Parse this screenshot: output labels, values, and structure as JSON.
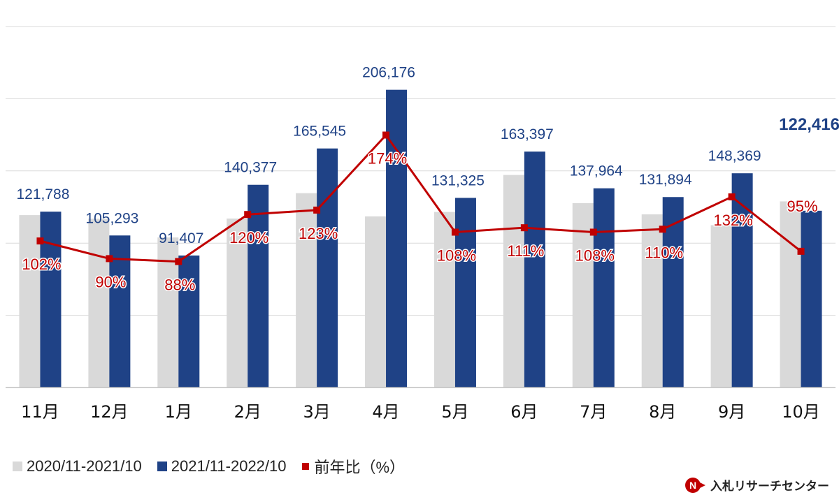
{
  "chart_data": {
    "type": "bar",
    "categories": [
      "11月",
      "12月",
      "1月",
      "2月",
      "3月",
      "4月",
      "5月",
      "6月",
      "7月",
      "8月",
      "9月",
      "10月"
    ],
    "ylim": [
      0,
      250000
    ],
    "grid": true,
    "series": [
      {
        "name": "2020/11-2021/10",
        "kind": "bar",
        "color": "#d9d9d9",
        "values": [
          119400,
          116900,
          103900,
          117000,
          134600,
          118500,
          121600,
          147200,
          127700,
          119900,
          112400,
          128900
        ]
      },
      {
        "name": "2021/11-2022/10",
        "kind": "bar",
        "color": "#1f4286",
        "values": [
          121788,
          105293,
          91407,
          140377,
          165545,
          206176,
          131325,
          163397,
          137964,
          131894,
          148369,
          122416
        ],
        "labels": [
          "121,788",
          "105,293",
          "91,407",
          "140,377",
          "165,545",
          "206,176",
          "131,325",
          "163,397",
          "137,964",
          "131,894",
          "148,369",
          "122,416"
        ]
      },
      {
        "name": "前年比（%）",
        "kind": "line",
        "color": "#c00000",
        "values": [
          102,
          90,
          88,
          120,
          123,
          174,
          108,
          111,
          108,
          110,
          132,
          95
        ],
        "labels": [
          "102%",
          "90%",
          "88%",
          "120%",
          "123%",
          "174%",
          "108%",
          "111%",
          "108%",
          "110%",
          "132%",
          "95%"
        ]
      }
    ],
    "legend_position": "bottom-left"
  },
  "legend": {
    "items": [
      {
        "label": "2020/11-2021/10",
        "color": "#d9d9d9"
      },
      {
        "label": "2021/11-2022/10",
        "color": "#1f4286"
      },
      {
        "label": "前年比（%）",
        "color": "#c00000"
      }
    ]
  },
  "logo": {
    "text": "入札リサーチセンター"
  }
}
